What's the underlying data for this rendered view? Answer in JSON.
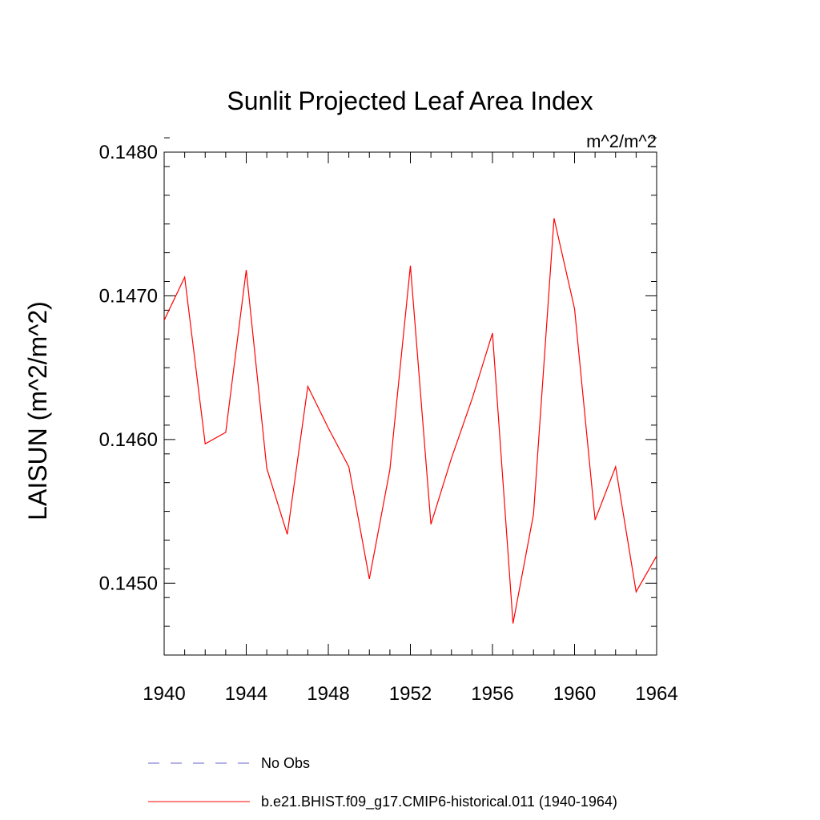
{
  "chart_data": {
    "type": "line",
    "title": "Sunlit Projected Leaf Area Index",
    "units_label": "m^2/m^2",
    "ylabel": "LAISUN  (m^2/m^2)",
    "xlabel": "",
    "xlim": [
      1940,
      1964
    ],
    "ylim": [
      0.1445,
      0.148
    ],
    "x_ticks": [
      1940,
      1944,
      1948,
      1952,
      1956,
      1960,
      1964
    ],
    "x_tick_labels": [
      "1940",
      "1944",
      "1948",
      "1952",
      "1956",
      "1960",
      "1964"
    ],
    "y_ticks": [
      0.145,
      0.146,
      0.147,
      0.148
    ],
    "y_tick_labels": [
      "0.1450",
      "0.1460",
      "0.1470",
      "0.1480"
    ],
    "y_minor_step": 0.0002,
    "grid": false,
    "legend_position": "bottom",
    "series": [
      {
        "name": "b.e21.BHIST.f09_g17.CMIP6-historical.011 (1940-1964)",
        "color": "#ff0000",
        "dash": "solid",
        "x": [
          1940,
          1941,
          1942,
          1943,
          1944,
          1945,
          1946,
          1947,
          1948,
          1949,
          1950,
          1951,
          1952,
          1953,
          1954,
          1955,
          1956,
          1957,
          1958,
          1959,
          1960,
          1961,
          1962,
          1963,
          1964
        ],
        "y": [
          0.14683,
          0.14713,
          0.14597,
          0.14605,
          0.14718,
          0.1458,
          0.14534,
          0.14637,
          0.14608,
          0.14581,
          0.14503,
          0.14579,
          0.14721,
          0.14541,
          0.14587,
          0.14628,
          0.14674,
          0.14472,
          0.14548,
          0.14754,
          0.14691,
          0.14544,
          0.14581,
          0.14494,
          0.14519
        ]
      }
    ],
    "legend": [
      {
        "label": "No Obs",
        "color": "#6666cc",
        "dash": "dashed"
      },
      {
        "label": "b.e21.BHIST.f09_g17.CMIP6-historical.011 (1940-1964)",
        "color": "#ff0000",
        "dash": "solid"
      }
    ]
  }
}
